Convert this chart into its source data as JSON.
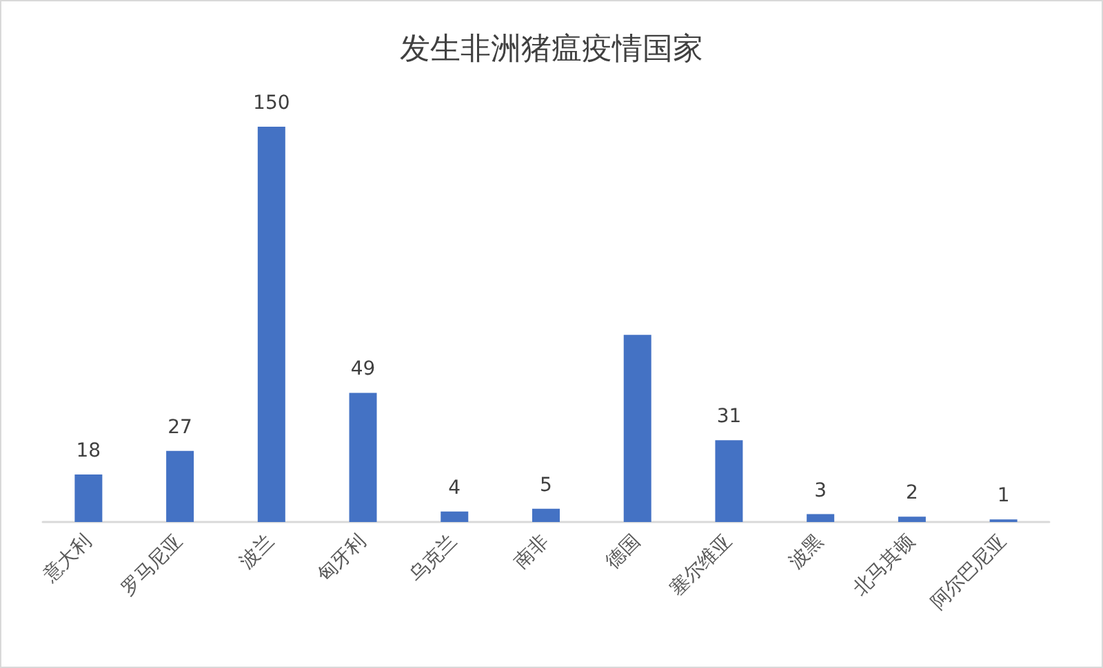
{
  "chart_data": {
    "type": "bar",
    "title": "发生非洲猪瘟疫情国家",
    "categories": [
      "意大利",
      "罗马尼亚",
      "波兰",
      "匈牙利",
      "乌克兰",
      "南非",
      "德国",
      "塞尔维亚",
      "波黑",
      "北马其顿",
      "阿尔巴尼亚"
    ],
    "values": [
      18,
      27,
      150,
      49,
      4,
      5,
      71,
      31,
      3,
      2,
      1
    ],
    "value_labels": [
      "18",
      "27",
      "150",
      "49",
      "4",
      "5",
      null,
      "31",
      "3",
      "2",
      "1"
    ],
    "color": "#4472c4"
  }
}
